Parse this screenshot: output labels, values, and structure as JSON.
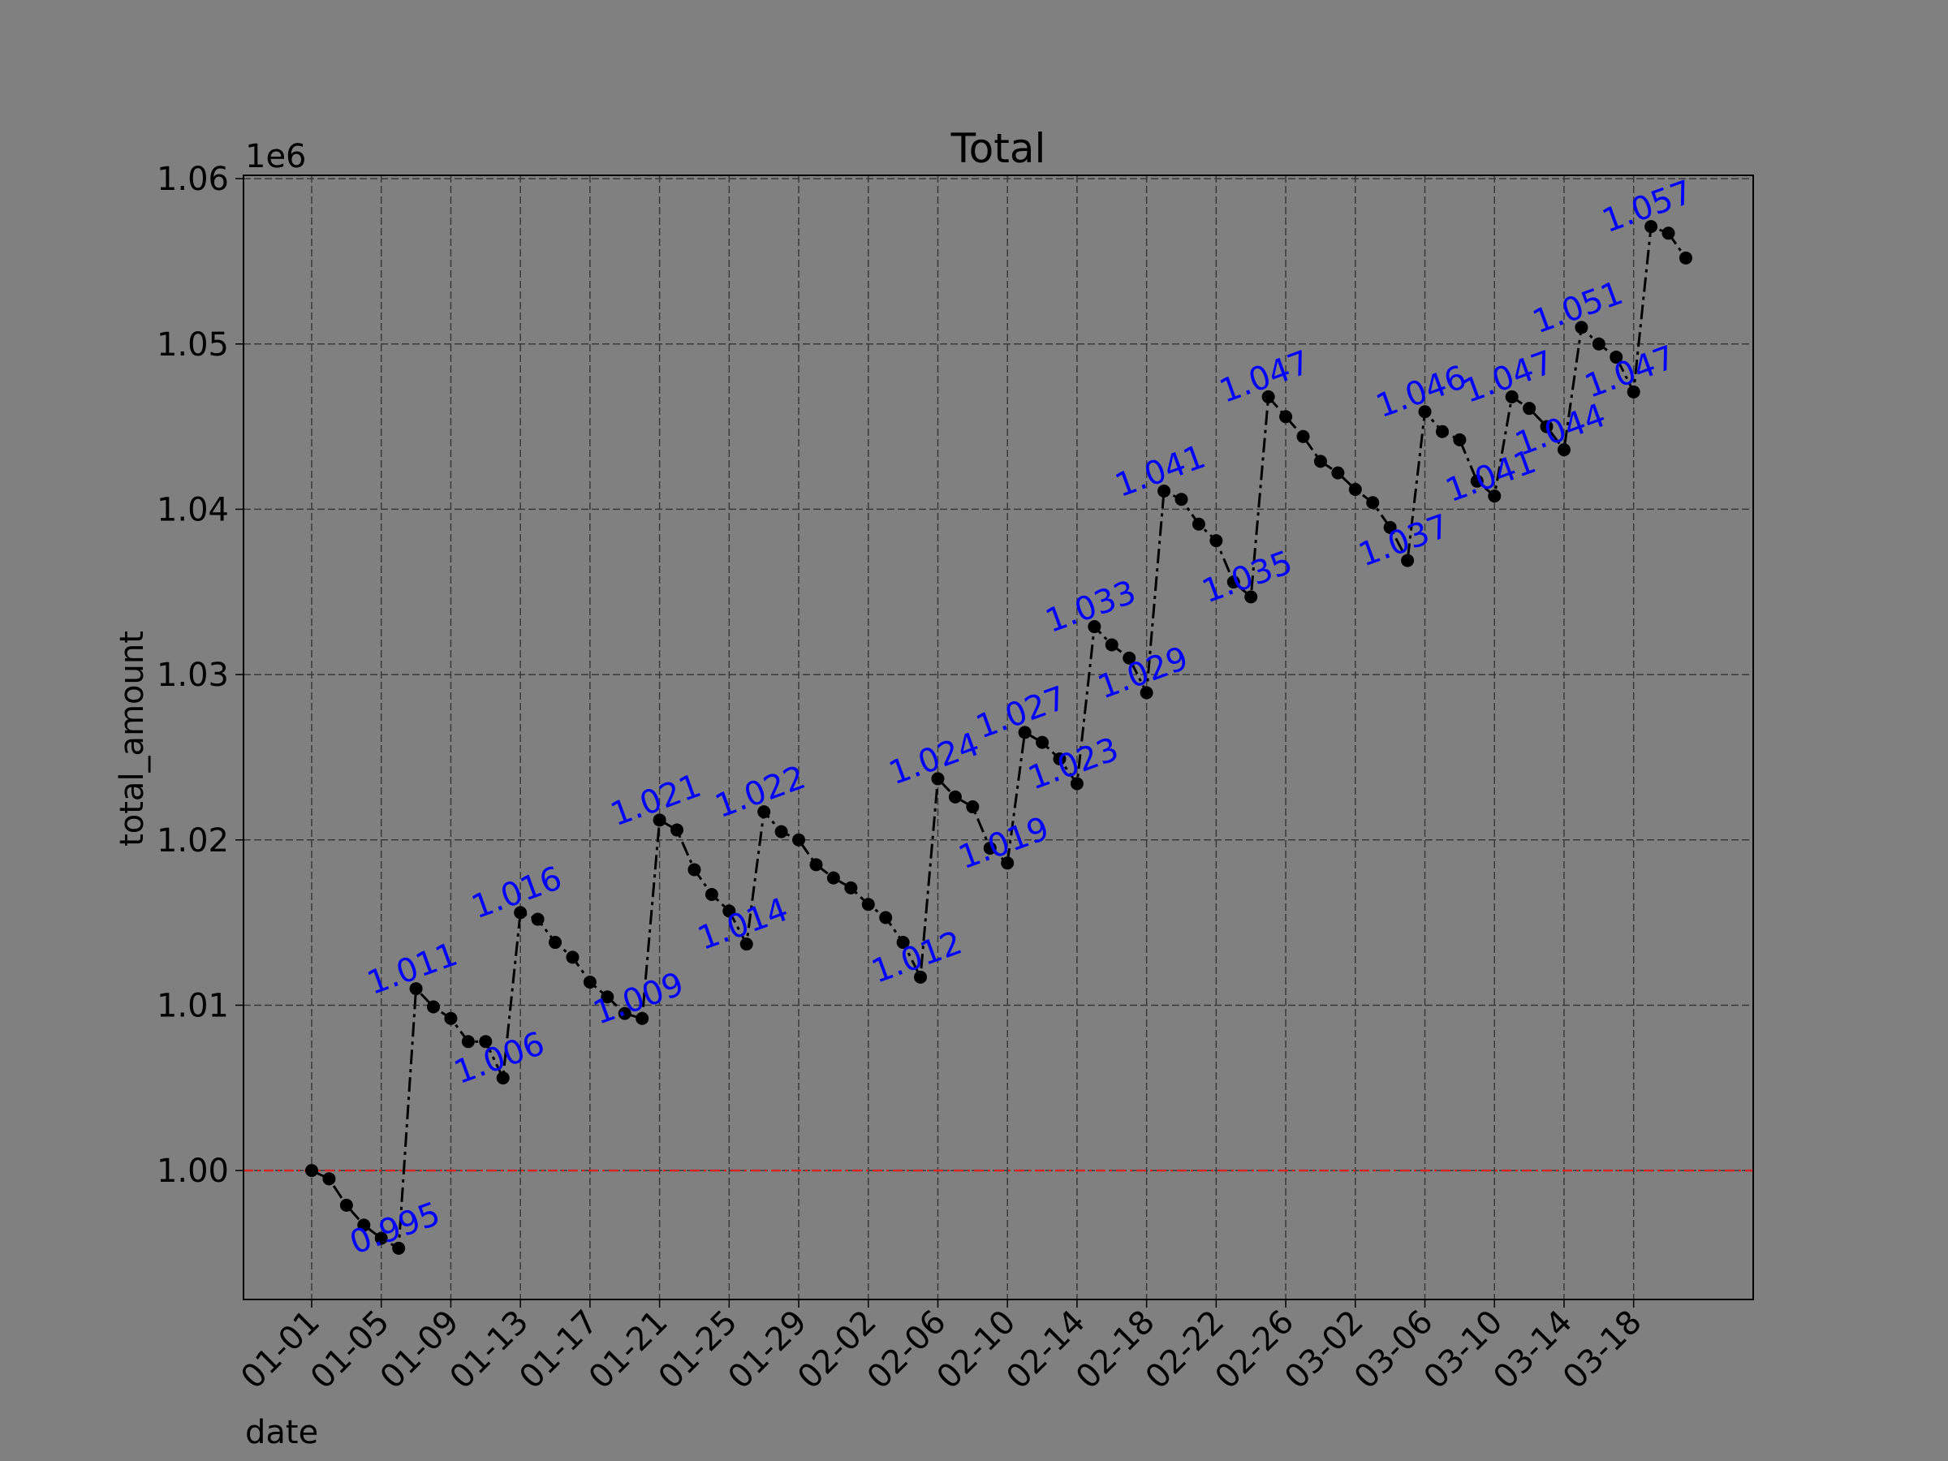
{
  "chart_data": {
    "type": "line",
    "title": "Total",
    "x_label": "date",
    "y_label": "total_amount",
    "y_offset_label": "1e6",
    "x": [
      "01-01",
      "01-02",
      "01-03",
      "01-04",
      "01-05",
      "01-06",
      "01-07",
      "01-08",
      "01-09",
      "01-10",
      "01-11",
      "01-12",
      "01-13",
      "01-14",
      "01-15",
      "01-16",
      "01-17",
      "01-18",
      "01-19",
      "01-20",
      "01-21",
      "01-22",
      "01-23",
      "01-24",
      "01-25",
      "01-26",
      "01-27",
      "01-28",
      "01-29",
      "01-30",
      "01-31",
      "02-01",
      "02-02",
      "02-03",
      "02-04",
      "02-05",
      "02-06",
      "02-07",
      "02-08",
      "02-09",
      "02-10",
      "02-11",
      "02-12",
      "02-13",
      "02-14",
      "02-15",
      "02-16",
      "02-17",
      "02-18",
      "02-19",
      "02-20",
      "02-21",
      "02-22",
      "02-23",
      "02-24",
      "02-25",
      "02-26",
      "02-27",
      "02-28",
      "03-01",
      "03-02",
      "03-03",
      "03-04",
      "03-05",
      "03-06",
      "03-07",
      "03-08",
      "03-09",
      "03-10",
      "03-11",
      "03-12",
      "03-13",
      "03-14",
      "03-15",
      "03-16",
      "03-17",
      "03-18",
      "03-19",
      "03-20",
      "03-21"
    ],
    "xticks": [
      "01-01",
      "01-05",
      "01-09",
      "01-13",
      "01-17",
      "01-21",
      "01-25",
      "01-29",
      "02-02",
      "02-06",
      "02-10",
      "02-14",
      "02-18",
      "02-22",
      "02-26",
      "03-02",
      "03-06",
      "03-10",
      "03-14",
      "03-18"
    ],
    "series": [
      {
        "color": "#000000",
        "label_color": "#0000ff",
        "values": [
          1.0,
          0.9995,
          0.9979,
          0.9967,
          0.9959,
          0.9953,
          1.011,
          1.0099,
          1.0092,
          1.0078,
          1.0078,
          1.0056,
          1.0156,
          1.0152,
          1.0138,
          1.0129,
          1.0114,
          1.0105,
          1.0095,
          1.0092,
          1.0212,
          1.0206,
          1.0182,
          1.0167,
          1.0157,
          1.0137,
          1.0217,
          1.0205,
          1.02,
          1.0185,
          1.0177,
          1.0171,
          1.0161,
          1.0153,
          1.0138,
          1.0117,
          1.0237,
          1.0226,
          1.022,
          1.0195,
          1.0186,
          1.0265,
          1.0259,
          1.0249,
          1.0234,
          1.0329,
          1.0318,
          1.031,
          1.0289,
          1.0411,
          1.0406,
          1.0391,
          1.0381,
          1.0356,
          1.0347,
          1.0468,
          1.0456,
          1.0444,
          1.0429,
          1.0422,
          1.0412,
          1.0404,
          1.0389,
          1.0369,
          1.0459,
          1.0447,
          1.0442,
          1.0417,
          1.0408,
          1.0468,
          1.0461,
          1.045,
          1.0436,
          1.051,
          1.05,
          1.0492,
          1.0471,
          1.0571,
          1.0567,
          1.0552
        ],
        "value_labels": [
          null,
          null,
          null,
          null,
          null,
          "0.995",
          "1.011",
          null,
          null,
          null,
          null,
          "1.006",
          "1.016",
          null,
          null,
          null,
          null,
          null,
          null,
          "1.009",
          "1.021",
          null,
          null,
          null,
          null,
          "1.014",
          "1.022",
          null,
          null,
          null,
          null,
          null,
          null,
          null,
          null,
          "1.012",
          "1.024",
          null,
          null,
          null,
          "1.019",
          "1.027",
          null,
          null,
          "1.023",
          "1.033",
          null,
          null,
          "1.029",
          "1.041",
          null,
          null,
          null,
          null,
          "1.035",
          "1.047",
          null,
          null,
          null,
          null,
          null,
          null,
          null,
          "1.037",
          "1.046",
          null,
          null,
          null,
          "1.041",
          "1.047",
          null,
          null,
          "1.044",
          "1.051",
          null,
          null,
          "1.047",
          "1.057",
          null,
          null
        ]
      }
    ],
    "ylim": [
      0.9922,
      1.0602
    ],
    "yticks": [
      {
        "value": 1.0,
        "label": "1.00"
      },
      1.01,
      1.02,
      1.03,
      1.04,
      1.05,
      1.06
    ],
    "hline": {
      "value": 1.0,
      "color": "#d62728"
    },
    "grid": true
  }
}
